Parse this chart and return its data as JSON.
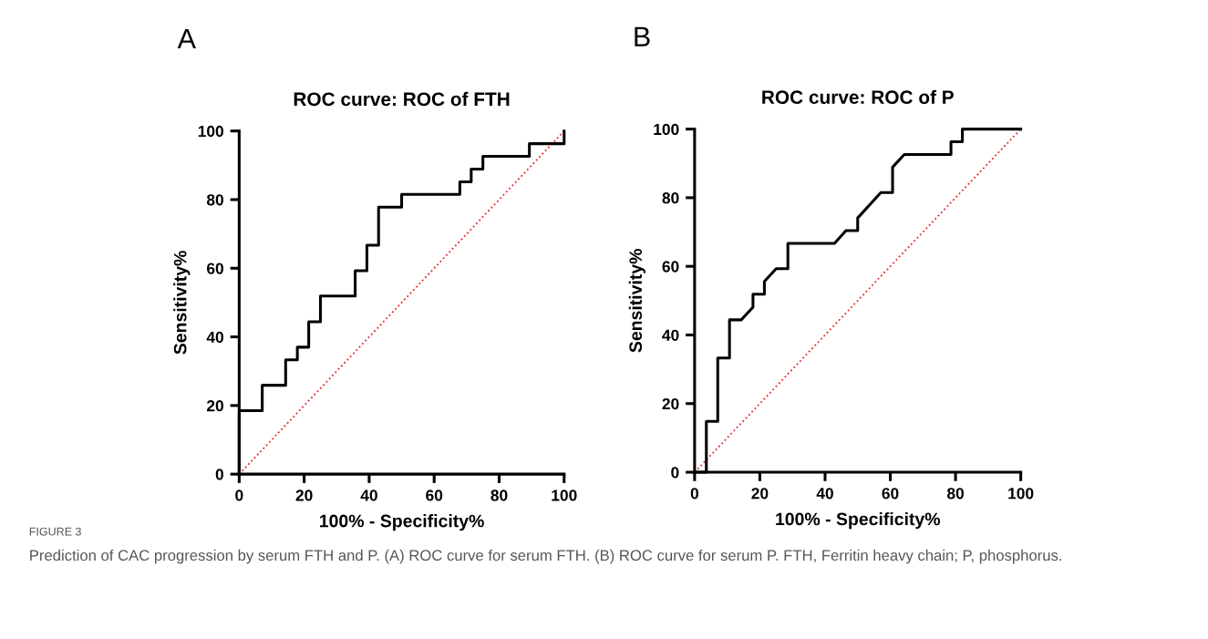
{
  "chart_data": [
    {
      "type": "line",
      "title": "ROC curve: ROC of FTH",
      "xlabel": "100% - Specificity%",
      "ylabel": "Sensitivity%",
      "annotations": [
        "A",
        "FIGURE 3",
        "Prediction of CAC progression by serum FTH and P. (A) ROC curve for serum FTH. (B) ROC curve for serum P. FTH, Ferritin heavy chain; P, phosphorus."
      ],
      "xlim": [
        0,
        100
      ],
      "ylim": [
        0,
        100
      ],
      "xticks": [
        0,
        20,
        40,
        60,
        80,
        100
      ],
      "yticks": [
        0,
        20,
        40,
        60,
        80,
        100
      ],
      "grid": false,
      "marker": "none",
      "series": [
        {
          "color": "#000000",
          "line_style": "solid",
          "x": [
            0,
            0,
            7.1,
            7.1,
            14.3,
            14.3,
            17.9,
            17.9,
            21.4,
            21.4,
            25,
            25,
            35.7,
            35.7,
            39.3,
            39.3,
            42.9,
            42.9,
            50,
            50,
            67.9,
            67.9,
            71.4,
            71.4,
            75,
            75,
            89.3,
            89.3,
            100,
            100
          ],
          "values": [
            0,
            18.5,
            18.5,
            25.9,
            25.9,
            33.3,
            33.3,
            37,
            37,
            44.4,
            44.4,
            51.9,
            51.9,
            59.3,
            59.3,
            66.7,
            66.7,
            77.8,
            77.8,
            81.5,
            81.5,
            85.2,
            85.2,
            88.9,
            88.9,
            92.6,
            92.6,
            96.3,
            96.3,
            100
          ]
        },
        {
          "color": "#e8282b",
          "line_style": "dotted",
          "x": [
            0,
            100
          ],
          "values": [
            0,
            100
          ]
        }
      ]
    },
    {
      "type": "line",
      "title": "ROC curve: ROC of P",
      "xlabel": "100% - Specificity%",
      "ylabel": "Sensitivity%",
      "annotations": [
        "B"
      ],
      "xlim": [
        0,
        100
      ],
      "ylim": [
        0,
        100
      ],
      "xticks": [
        0,
        20,
        40,
        60,
        80,
        100
      ],
      "yticks": [
        0,
        20,
        40,
        60,
        80,
        100
      ],
      "grid": false,
      "marker": "none",
      "series": [
        {
          "color": "#000000",
          "line_style": "solid",
          "x": [
            0,
            3.6,
            3.6,
            7.1,
            7.1,
            10.7,
            10.7,
            14.3,
            17.9,
            17.9,
            21.4,
            21.4,
            25,
            28.6,
            28.6,
            42.9,
            46.4,
            50,
            50,
            57.1,
            60.7,
            60.7,
            64.3,
            78.6,
            78.6,
            82.1,
            82.1,
            100
          ],
          "values": [
            0,
            0,
            14.8,
            14.8,
            33.3,
            33.3,
            44.4,
            44.4,
            48.1,
            51.9,
            51.9,
            55.6,
            59.3,
            59.3,
            66.7,
            66.7,
            70.4,
            70.4,
            74.1,
            81.5,
            81.5,
            88.9,
            92.6,
            92.6,
            96.3,
            96.3,
            100,
            100
          ]
        },
        {
          "color": "#e8282b",
          "line_style": "dotted",
          "x": [
            0,
            100
          ],
          "values": [
            0,
            100
          ]
        }
      ]
    }
  ]
}
